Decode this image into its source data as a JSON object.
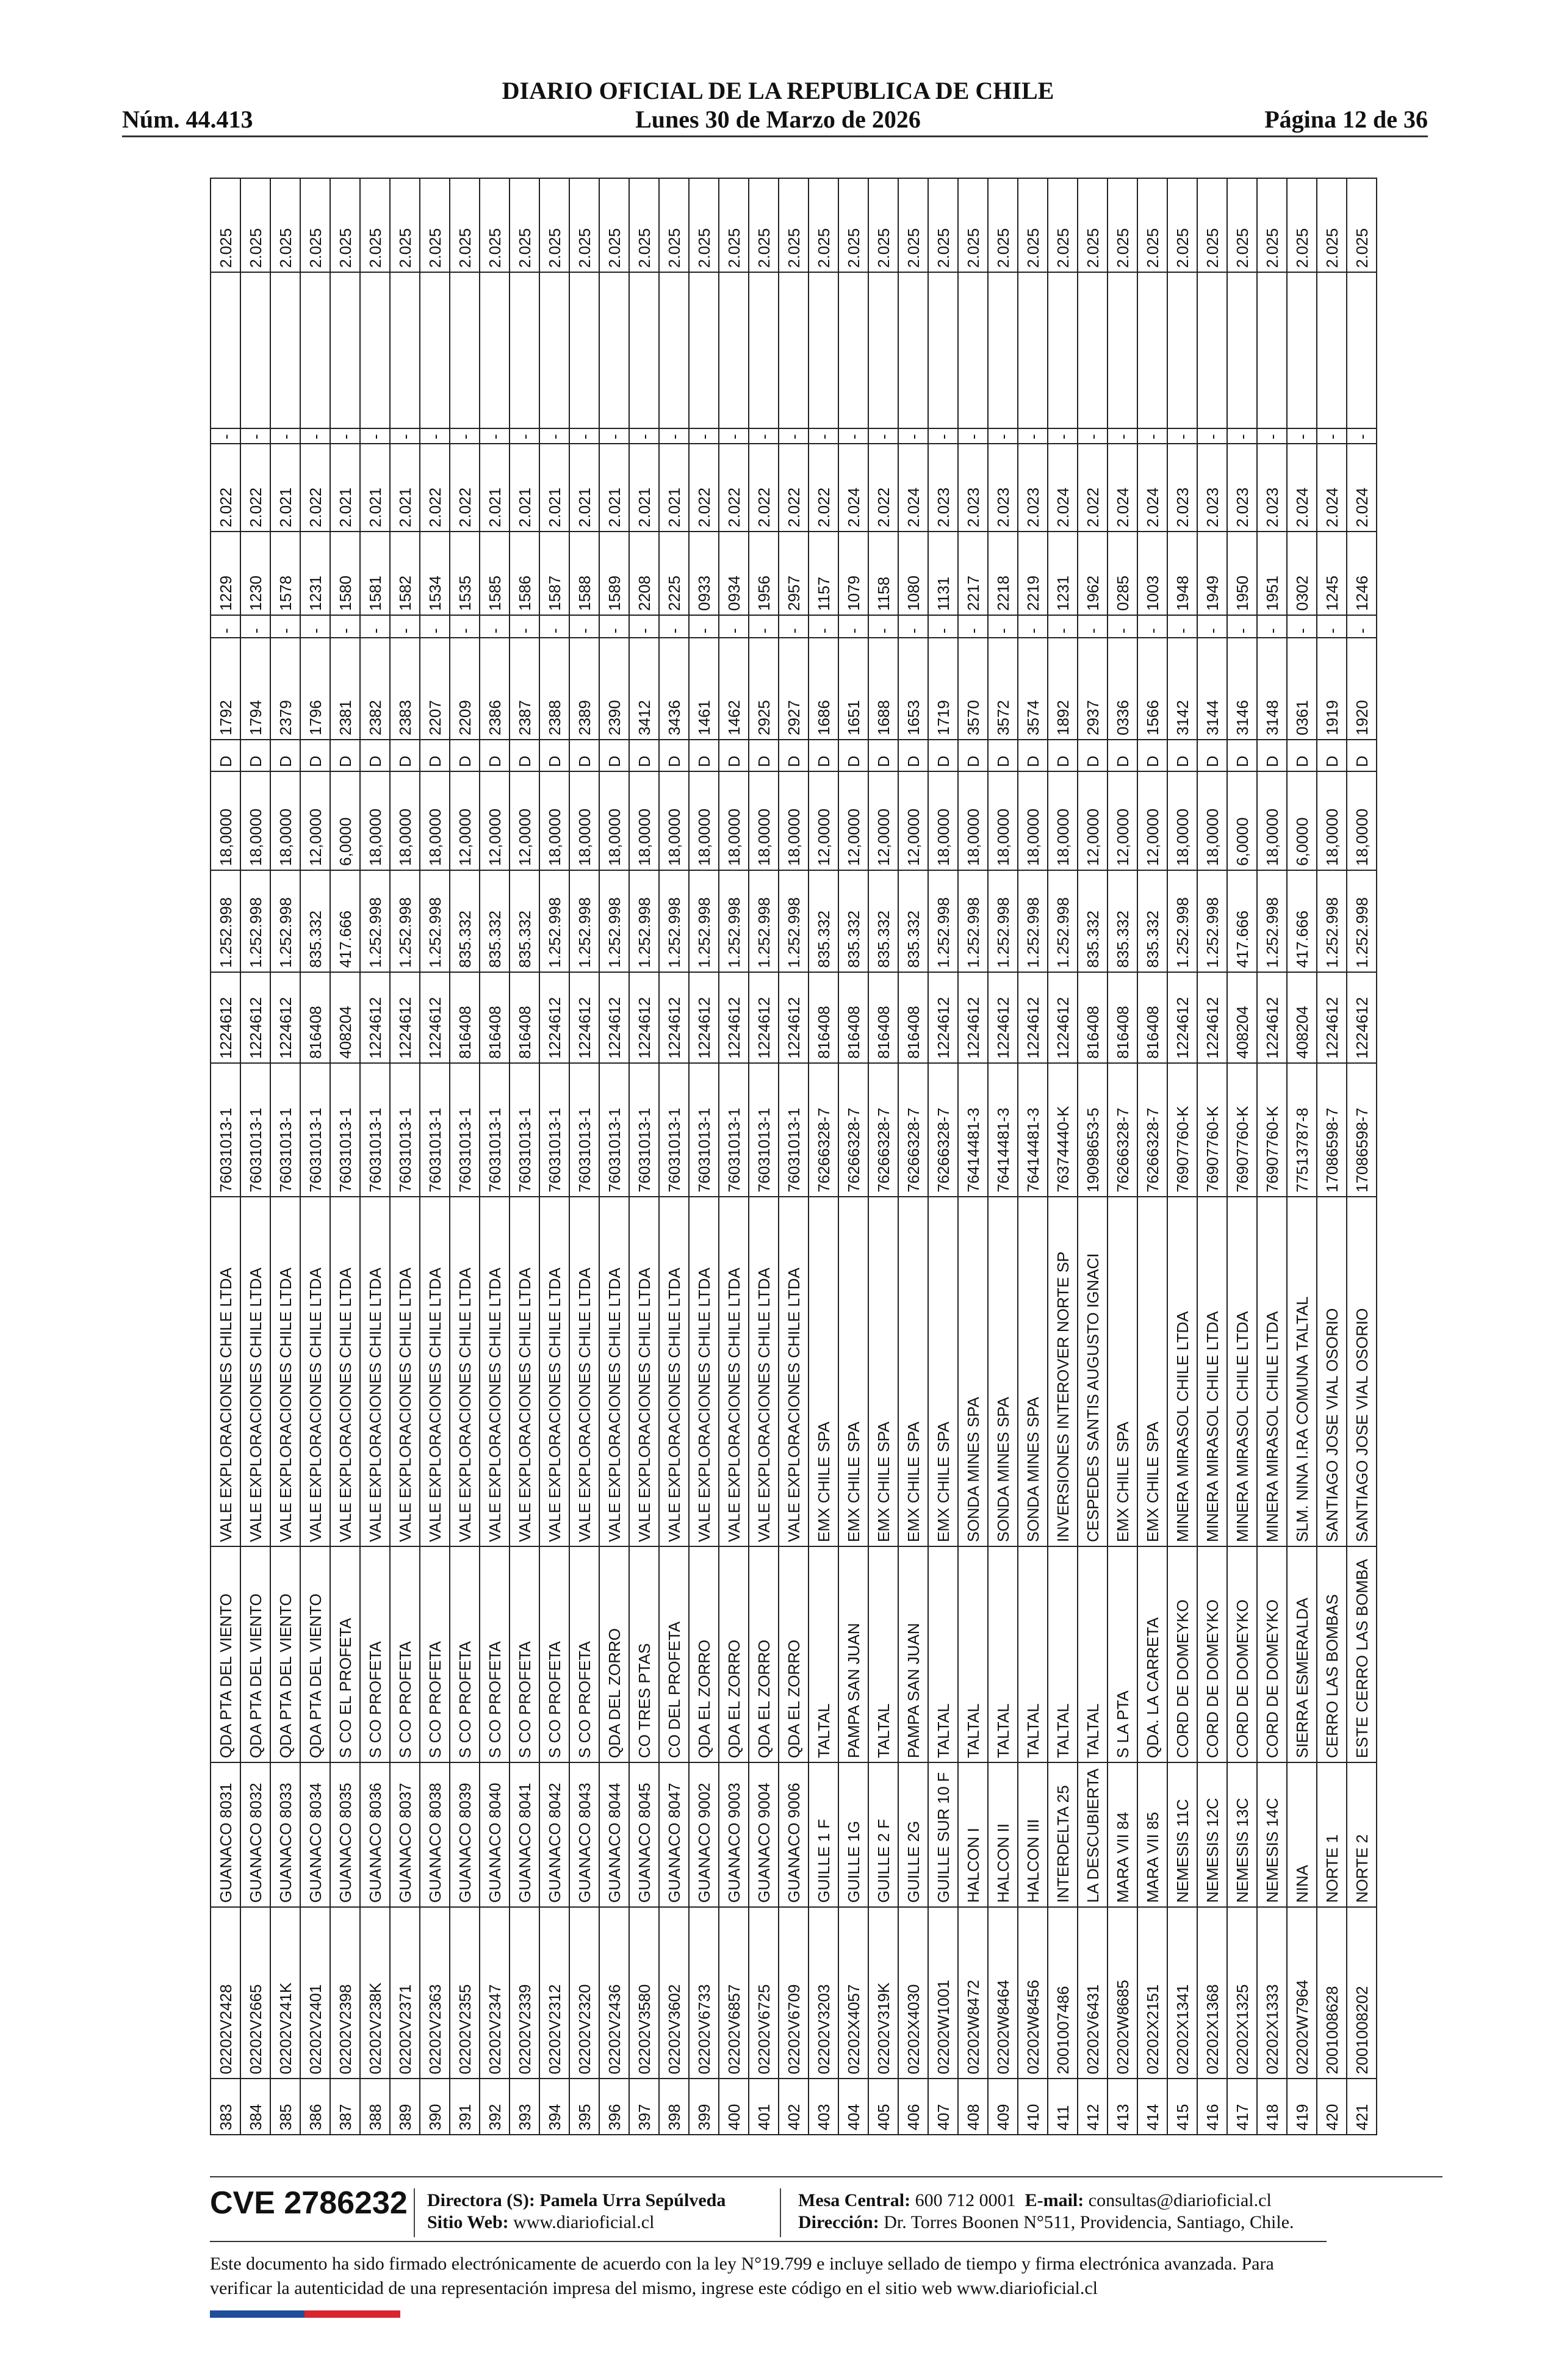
{
  "header": {
    "title": "DIARIO OFICIAL DE LA REPUBLICA DE CHILE",
    "number": "Núm. 44.413",
    "date": "Lunes 30 de Marzo de 2026",
    "page": "Página 12 de 36"
  },
  "table": {
    "rows": [
      [
        "383",
        "02202V2428",
        "GUANACO 8031",
        "QDA PTA DEL VIENTO",
        "VALE EXPLORACIONES CHILE LTDA",
        "76031013-1",
        "1224612",
        "1.252.998",
        "18,0000",
        "D",
        "1792",
        "-",
        "1229",
        "2.022",
        "-",
        "2.025"
      ],
      [
        "384",
        "02202V2665",
        "GUANACO 8032",
        "QDA PTA DEL VIENTO",
        "VALE EXPLORACIONES CHILE LTDA",
        "76031013-1",
        "1224612",
        "1.252.998",
        "18,0000",
        "D",
        "1794",
        "-",
        "1230",
        "2.022",
        "-",
        "2.025"
      ],
      [
        "385",
        "02202V241K",
        "GUANACO 8033",
        "QDA PTA DEL VIENTO",
        "VALE EXPLORACIONES CHILE LTDA",
        "76031013-1",
        "1224612",
        "1.252.998",
        "18,0000",
        "D",
        "2379",
        "-",
        "1578",
        "2.021",
        "-",
        "2.025"
      ],
      [
        "386",
        "02202V2401",
        "GUANACO 8034",
        "QDA PTA DEL VIENTO",
        "VALE EXPLORACIONES CHILE LTDA",
        "76031013-1",
        "816408",
        "835.332",
        "12,0000",
        "D",
        "1796",
        "-",
        "1231",
        "2.022",
        "-",
        "2.025"
      ],
      [
        "387",
        "02202V2398",
        "GUANACO 8035",
        "S CO EL PROFETA",
        "VALE EXPLORACIONES CHILE LTDA",
        "76031013-1",
        "408204",
        "417.666",
        "6,0000",
        "D",
        "2381",
        "-",
        "1580",
        "2.021",
        "-",
        "2.025"
      ],
      [
        "388",
        "02202V238K",
        "GUANACO 8036",
        "S CO PROFETA",
        "VALE EXPLORACIONES CHILE LTDA",
        "76031013-1",
        "1224612",
        "1.252.998",
        "18,0000",
        "D",
        "2382",
        "-",
        "1581",
        "2.021",
        "-",
        "2.025"
      ],
      [
        "389",
        "02202V2371",
        "GUANACO 8037",
        "S CO PROFETA",
        "VALE EXPLORACIONES CHILE LTDA",
        "76031013-1",
        "1224612",
        "1.252.998",
        "18,0000",
        "D",
        "2383",
        "-",
        "1582",
        "2.021",
        "-",
        "2.025"
      ],
      [
        "390",
        "02202V2363",
        "GUANACO 8038",
        "S CO PROFETA",
        "VALE EXPLORACIONES CHILE LTDA",
        "76031013-1",
        "1224612",
        "1.252.998",
        "18,0000",
        "D",
        "2207",
        "-",
        "1534",
        "2.022",
        "-",
        "2.025"
      ],
      [
        "391",
        "02202V2355",
        "GUANACO 8039",
        "S CO PROFETA",
        "VALE EXPLORACIONES CHILE LTDA",
        "76031013-1",
        "816408",
        "835.332",
        "12,0000",
        "D",
        "2209",
        "-",
        "1535",
        "2.022",
        "-",
        "2.025"
      ],
      [
        "392",
        "02202V2347",
        "GUANACO 8040",
        "S CO PROFETA",
        "VALE EXPLORACIONES CHILE LTDA",
        "76031013-1",
        "816408",
        "835.332",
        "12,0000",
        "D",
        "2386",
        "-",
        "1585",
        "2.021",
        "-",
        "2.025"
      ],
      [
        "393",
        "02202V2339",
        "GUANACO 8041",
        "S CO PROFETA",
        "VALE EXPLORACIONES CHILE LTDA",
        "76031013-1",
        "816408",
        "835.332",
        "12,0000",
        "D",
        "2387",
        "-",
        "1586",
        "2.021",
        "-",
        "2.025"
      ],
      [
        "394",
        "02202V2312",
        "GUANACO 8042",
        "S CO PROFETA",
        "VALE EXPLORACIONES CHILE LTDA",
        "76031013-1",
        "1224612",
        "1.252.998",
        "18,0000",
        "D",
        "2388",
        "-",
        "1587",
        "2.021",
        "-",
        "2.025"
      ],
      [
        "395",
        "02202V2320",
        "GUANACO 8043",
        "S CO PROFETA",
        "VALE EXPLORACIONES CHILE LTDA",
        "76031013-1",
        "1224612",
        "1.252.998",
        "18,0000",
        "D",
        "2389",
        "-",
        "1588",
        "2.021",
        "-",
        "2.025"
      ],
      [
        "396",
        "02202V2436",
        "GUANACO 8044",
        "QDA DEL ZORRO",
        "VALE EXPLORACIONES CHILE LTDA",
        "76031013-1",
        "1224612",
        "1.252.998",
        "18,0000",
        "D",
        "2390",
        "-",
        "1589",
        "2.021",
        "-",
        "2.025"
      ],
      [
        "397",
        "02202V3580",
        "GUANACO 8045",
        "CO TRES PTAS",
        "VALE EXPLORACIONES CHILE LTDA",
        "76031013-1",
        "1224612",
        "1.252.998",
        "18,0000",
        "D",
        "3412",
        "-",
        "2208",
        "2.021",
        "-",
        "2.025"
      ],
      [
        "398",
        "02202V3602",
        "GUANACO 8047",
        "CO DEL PROFETA",
        "VALE EXPLORACIONES CHILE LTDA",
        "76031013-1",
        "1224612",
        "1.252.998",
        "18,0000",
        "D",
        "3436",
        "-",
        "2225",
        "2.021",
        "-",
        "2.025"
      ],
      [
        "399",
        "02202V6733",
        "GUANACO 9002",
        "QDA EL ZORRO",
        "VALE EXPLORACIONES CHILE LTDA",
        "76031013-1",
        "1224612",
        "1.252.998",
        "18,0000",
        "D",
        "1461",
        "-",
        "0933",
        "2.022",
        "-",
        "2.025"
      ],
      [
        "400",
        "02202V6857",
        "GUANACO 9003",
        "QDA EL ZORRO",
        "VALE EXPLORACIONES CHILE LTDA",
        "76031013-1",
        "1224612",
        "1.252.998",
        "18,0000",
        "D",
        "1462",
        "-",
        "0934",
        "2.022",
        "-",
        "2.025"
      ],
      [
        "401",
        "02202V6725",
        "GUANACO 9004",
        "QDA EL ZORRO",
        "VALE EXPLORACIONES CHILE LTDA",
        "76031013-1",
        "1224612",
        "1.252.998",
        "18,0000",
        "D",
        "2925",
        "-",
        "1956",
        "2.022",
        "-",
        "2.025"
      ],
      [
        "402",
        "02202V6709",
        "GUANACO 9006",
        "QDA EL ZORRO",
        "VALE EXPLORACIONES CHILE LTDA",
        "76031013-1",
        "1224612",
        "1.252.998",
        "18,0000",
        "D",
        "2927",
        "-",
        "2957",
        "2.022",
        "-",
        "2.025"
      ],
      [
        "403",
        "02202V3203",
        "GUILLE 1 F",
        "TALTAL",
        "EMX CHILE SPA",
        "76266328-7",
        "816408",
        "835.332",
        "12,0000",
        "D",
        "1686",
        "-",
        "1157",
        "2.022",
        "-",
        "2.025"
      ],
      [
        "404",
        "02202X4057",
        "GUILLE 1G",
        "PAMPA SAN JUAN",
        "EMX CHILE SPA",
        "76266328-7",
        "816408",
        "835.332",
        "12,0000",
        "D",
        "1651",
        "-",
        "1079",
        "2.024",
        "-",
        "2.025"
      ],
      [
        "405",
        "02202V319K",
        "GUILLE 2 F",
        "TALTAL",
        "EMX CHILE SPA",
        "76266328-7",
        "816408",
        "835.332",
        "12,0000",
        "D",
        "1688",
        "-",
        "1158",
        "2.022",
        "-",
        "2.025"
      ],
      [
        "406",
        "02202X4030",
        "GUILLE 2G",
        "PAMPA SAN JUAN",
        "EMX CHILE SPA",
        "76266328-7",
        "816408",
        "835.332",
        "12,0000",
        "D",
        "1653",
        "-",
        "1080",
        "2.024",
        "-",
        "2.025"
      ],
      [
        "407",
        "02202W1001",
        "GUILLE SUR 10 F",
        "TALTAL",
        "EMX CHILE SPA",
        "76266328-7",
        "1224612",
        "1.252.998",
        "18,0000",
        "D",
        "1719",
        "-",
        "1131",
        "2.023",
        "-",
        "2.025"
      ],
      [
        "408",
        "02202W8472",
        "HALCON I",
        "TALTAL",
        "SONDA MINES SPA",
        "76414481-3",
        "1224612",
        "1.252.998",
        "18,0000",
        "D",
        "3570",
        "-",
        "2217",
        "2.023",
        "-",
        "2.025"
      ],
      [
        "409",
        "02202W8464",
        "HALCON II",
        "TALTAL",
        "SONDA MINES SPA",
        "76414481-3",
        "1224612",
        "1.252.998",
        "18,0000",
        "D",
        "3572",
        "-",
        "2218",
        "2.023",
        "-",
        "2.025"
      ],
      [
        "410",
        "02202W8456",
        "HALCON III",
        "TALTAL",
        "SONDA MINES SPA",
        "76414481-3",
        "1224612",
        "1.252.998",
        "18,0000",
        "D",
        "3574",
        "-",
        "2219",
        "2.023",
        "-",
        "2.025"
      ],
      [
        "411",
        "2001007486",
        "INTERDELTA 25",
        "TALTAL",
        "INVERSIONES INTEROVER NORTE SP",
        "76374440-K",
        "1224612",
        "1.252.998",
        "18,0000",
        "D",
        "1892",
        "-",
        "1231",
        "2.024",
        "-",
        "2.025"
      ],
      [
        "412",
        "02202V6431",
        "LA DESCUBIERTA",
        "TALTAL",
        "CESPEDES SANTIS AUGUSTO IGNACI",
        "19098653-5",
        "816408",
        "835.332",
        "12,0000",
        "D",
        "2937",
        "-",
        "1962",
        "2.022",
        "-",
        "2.025"
      ],
      [
        "413",
        "02202W8685",
        "MARA VII 84",
        "S LA PTA",
        "EMX CHILE SPA",
        "76266328-7",
        "816408",
        "835.332",
        "12,0000",
        "D",
        "0336",
        "-",
        "0285",
        "2.024",
        "-",
        "2.025"
      ],
      [
        "414",
        "02202X2151",
        "MARA VII 85",
        "QDA. LA CARRETA",
        "EMX CHILE SPA",
        "76266328-7",
        "816408",
        "835.332",
        "12,0000",
        "D",
        "1566",
        "-",
        "1003",
        "2.024",
        "-",
        "2.025"
      ],
      [
        "415",
        "02202X1341",
        "NEMESIS 11C",
        "CORD DE DOMEYKO",
        "MINERA MIRASOL CHILE LTDA",
        "76907760-K",
        "1224612",
        "1.252.998",
        "18,0000",
        "D",
        "3142",
        "-",
        "1948",
        "2.023",
        "-",
        "2.025"
      ],
      [
        "416",
        "02202X1368",
        "NEMESIS 12C",
        "CORD DE DOMEYKO",
        "MINERA MIRASOL CHILE LTDA",
        "76907760-K",
        "1224612",
        "1.252.998",
        "18,0000",
        "D",
        "3144",
        "-",
        "1949",
        "2.023",
        "-",
        "2.025"
      ],
      [
        "417",
        "02202X1325",
        "NEMESIS 13C",
        "CORD DE DOMEYKO",
        "MINERA MIRASOL CHILE LTDA",
        "76907760-K",
        "408204",
        "417.666",
        "6,0000",
        "D",
        "3146",
        "-",
        "1950",
        "2.023",
        "-",
        "2.025"
      ],
      [
        "418",
        "02202X1333",
        "NEMESIS 14C",
        "CORD DE DOMEYKO",
        "MINERA MIRASOL CHILE LTDA",
        "76907760-K",
        "1224612",
        "1.252.998",
        "18,0000",
        "D",
        "3148",
        "-",
        "1951",
        "2.023",
        "-",
        "2.025"
      ],
      [
        "419",
        "02202W7964",
        "NINA",
        "SIERRA ESMERALDA",
        "SLM. NINA I.RA COMUNA TALTAL",
        "77513787-8",
        "408204",
        "417.666",
        "6,0000",
        "D",
        "0361",
        "-",
        "0302",
        "2.024",
        "-",
        "2.025"
      ],
      [
        "420",
        "2001008628",
        "NORTE 1",
        "CERRO LAS BOMBAS",
        "SANTIAGO JOSE VIAL OSORIO",
        "17086598-7",
        "1224612",
        "1.252.998",
        "18,0000",
        "D",
        "1919",
        "-",
        "1245",
        "2.024",
        "-",
        "2.025"
      ],
      [
        "421",
        "2001008202",
        "NORTE 2",
        "ESTE CERRO LAS BOMBA",
        "SANTIAGO JOSE VIAL OSORIO",
        "17086598-7",
        "1224612",
        "1.252.998",
        "18,0000",
        "D",
        "1920",
        "-",
        "1246",
        "2.024",
        "-",
        "2.025"
      ]
    ]
  },
  "footer": {
    "cve": "CVE 2786232",
    "director": "Directora (S): Pamela Urra Sepúlveda",
    "website": {
      "label": "Sitio Web:",
      "value": "www.diarioficial.cl"
    },
    "phone": {
      "label": "Mesa Central:",
      "value": "600 712 0001"
    },
    "email": {
      "label": "E-mail:",
      "value": "consultas@diarioficial.cl"
    },
    "address": {
      "label": "Dirección:",
      "value": "Dr. Torres Boonen N°511, Providencia, Santiago, Chile."
    },
    "notice": "Este documento ha sido firmado electrónicamente de acuerdo con la ley N°19.799 e incluye sellado de tiempo y firma electrónica avanzada. Para verificar la autenticidad de una representación impresa del mismo, ingrese este código en el sitio web www.diarioficial.cl"
  }
}
